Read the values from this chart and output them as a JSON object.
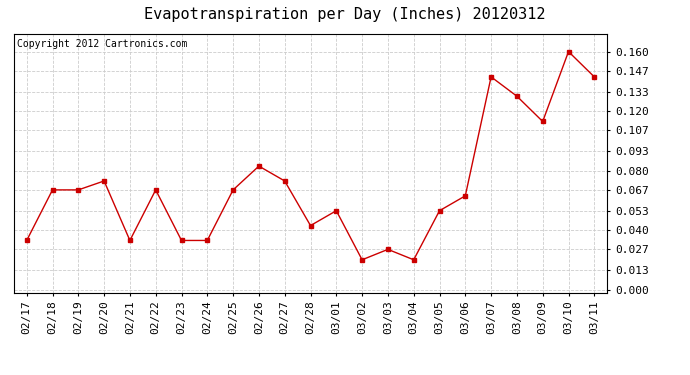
{
  "title": "Evapotranspiration per Day (Inches) 20120312",
  "copyright_text": "Copyright 2012 Cartronics.com",
  "x_labels": [
    "02/17",
    "02/18",
    "02/19",
    "02/20",
    "02/21",
    "02/22",
    "02/23",
    "02/24",
    "02/25",
    "02/26",
    "02/27",
    "02/28",
    "03/01",
    "03/02",
    "03/03",
    "03/04",
    "03/05",
    "03/06",
    "03/07",
    "03/08",
    "03/09",
    "03/10",
    "03/11"
  ],
  "y_values": [
    0.033,
    0.067,
    0.067,
    0.073,
    0.033,
    0.067,
    0.033,
    0.033,
    0.067,
    0.083,
    0.073,
    0.043,
    0.053,
    0.02,
    0.027,
    0.02,
    0.053,
    0.063,
    0.143,
    0.13,
    0.113,
    0.16,
    0.143
  ],
  "line_color": "#cc0000",
  "marker": "s",
  "marker_size": 2.5,
  "line_width": 1.0,
  "background_color": "#ffffff",
  "plot_bg_color": "#ffffff",
  "grid_color": "#cccccc",
  "grid_style": "--",
  "yticks": [
    0.0,
    0.013,
    0.027,
    0.04,
    0.053,
    0.067,
    0.08,
    0.093,
    0.107,
    0.12,
    0.133,
    0.147,
    0.16
  ],
  "ylim": [
    -0.002,
    0.172
  ],
  "title_fontsize": 11,
  "copyright_fontsize": 7,
  "tick_fontsize": 8
}
